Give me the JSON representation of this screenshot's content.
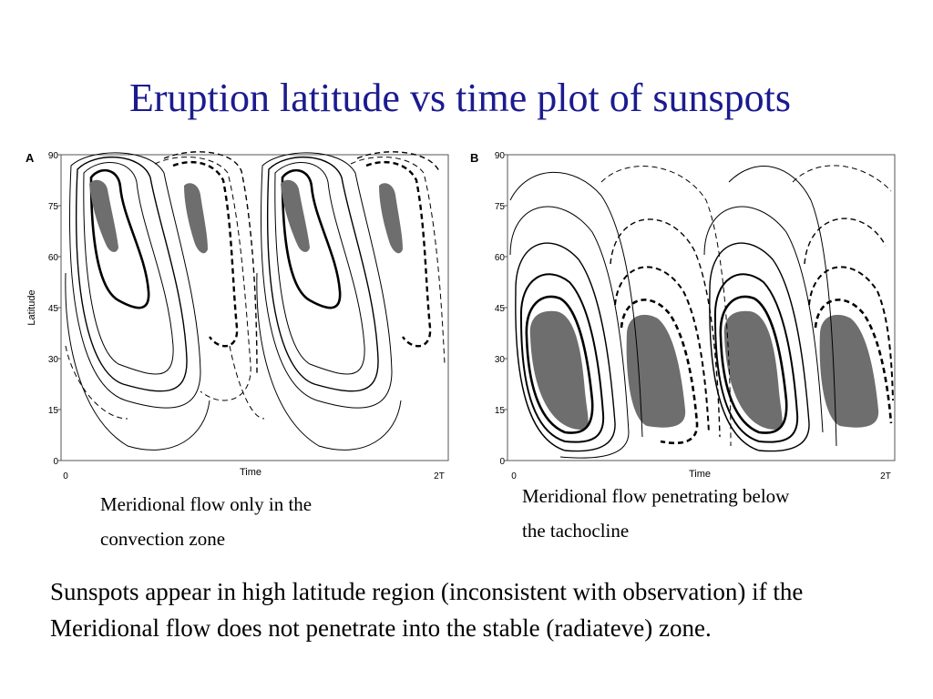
{
  "slide": {
    "title": "Eruption latitude vs time plot of sunspots",
    "body": "Sunspots appear in high latitude region (inconsistent with observation) if the Meridional flow does not penetrate into the stable (radiateve) zone."
  },
  "panels": [
    {
      "letter": "A",
      "ylabel": "Latitude",
      "xlabel": "Time",
      "yticks": [
        "90",
        "75",
        "60",
        "45",
        "30",
        "15",
        "0"
      ],
      "xticks": [
        "0",
        "2T"
      ],
      "caption_line1": "Meridional flow only in the",
      "caption_line2": "convection zone"
    },
    {
      "letter": "B",
      "ylabel": "",
      "xlabel": "Time",
      "yticks": [
        "90",
        "75",
        "60",
        "45",
        "30",
        "15",
        "0"
      ],
      "xticks": [
        "0",
        "2T"
      ],
      "caption_line1": "Meridional flow penetrating below",
      "caption_line2": "the tachocline"
    }
  ],
  "colors": {
    "title": "#1b1b8f",
    "spot": "#6e6e6e"
  }
}
